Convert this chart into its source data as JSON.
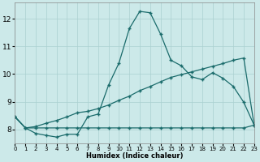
{
  "xlabel": "Humidex (Indice chaleur)",
  "xlim": [
    0,
    23
  ],
  "ylim": [
    7.5,
    12.6
  ],
  "yticks": [
    8,
    9,
    10,
    11,
    12
  ],
  "xticks": [
    0,
    1,
    2,
    3,
    4,
    5,
    6,
    7,
    8,
    9,
    10,
    11,
    12,
    13,
    14,
    15,
    16,
    17,
    18,
    19,
    20,
    21,
    22,
    23
  ],
  "bg_color": "#cce9e9",
  "grid_color": "#aad0d0",
  "line_color": "#1a6b6b",
  "max_y": [
    8.45,
    8.05,
    7.85,
    7.78,
    7.72,
    7.82,
    7.82,
    8.45,
    8.55,
    9.6,
    10.4,
    11.65,
    12.27,
    12.22,
    11.45,
    10.5,
    10.3,
    9.9,
    9.8,
    10.05,
    9.85,
    9.55,
    8.98,
    8.15
  ],
  "mean_y": [
    8.45,
    8.05,
    8.1,
    8.22,
    8.32,
    8.45,
    8.6,
    8.65,
    8.75,
    8.88,
    9.05,
    9.2,
    9.4,
    9.55,
    9.72,
    9.88,
    9.98,
    10.08,
    10.18,
    10.28,
    10.38,
    10.5,
    10.58,
    8.15
  ],
  "min_y": [
    8.45,
    8.05,
    8.05,
    8.05,
    8.05,
    8.05,
    8.05,
    8.05,
    8.05,
    8.05,
    8.05,
    8.05,
    8.05,
    8.05,
    8.05,
    8.05,
    8.05,
    8.05,
    8.05,
    8.05,
    8.05,
    8.05,
    8.05,
    8.15
  ]
}
